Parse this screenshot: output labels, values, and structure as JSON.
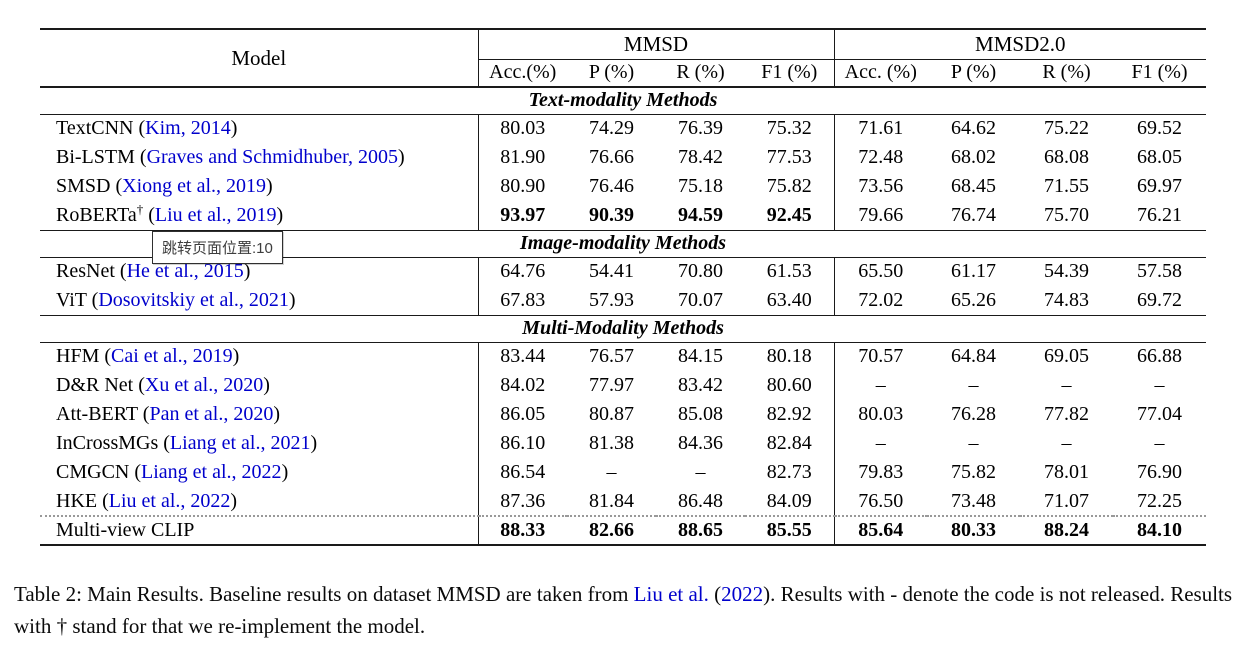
{
  "colors": {
    "link": "#0000CC",
    "rule": "#1a1a1a",
    "text": "#000000"
  },
  "table": {
    "cite_format": {
      "open": " (",
      "close": ")"
    },
    "header": {
      "model_label": "Model",
      "groups": [
        {
          "label": "MMSD"
        },
        {
          "label": "MMSD2.0"
        }
      ],
      "subheaders_mmsd": [
        "Acc.(%)",
        "P (%)",
        "R (%)",
        "F1 (%)"
      ],
      "subheaders_mmsd2": [
        "Acc. (%)",
        "P (%)",
        "R (%)",
        "F1 (%)"
      ]
    },
    "sections": [
      {
        "title": "Text-modality Methods",
        "rows": [
          {
            "name": "TextCNN",
            "sup": "",
            "cite": "Kim, 2014",
            "bold_mmsd": false,
            "bold_mmsd2": false,
            "dotted_top": false,
            "mmsd": [
              "80.03",
              "74.29",
              "76.39",
              "75.32"
            ],
            "mmsd2": [
              "71.61",
              "64.62",
              "75.22",
              "69.52"
            ]
          },
          {
            "name": "Bi-LSTM",
            "sup": "",
            "cite": "Graves and Schmidhuber, 2005",
            "bold_mmsd": false,
            "bold_mmsd2": false,
            "dotted_top": false,
            "mmsd": [
              "81.90",
              "76.66",
              "78.42",
              "77.53"
            ],
            "mmsd2": [
              "72.48",
              "68.02",
              "68.08",
              "68.05"
            ]
          },
          {
            "name": "SMSD",
            "sup": "",
            "cite": "Xiong et al., 2019",
            "bold_mmsd": false,
            "bold_mmsd2": false,
            "dotted_top": false,
            "mmsd": [
              "80.90",
              "76.46",
              "75.18",
              "75.82"
            ],
            "mmsd2": [
              "73.56",
              "68.45",
              "71.55",
              "69.97"
            ]
          },
          {
            "name": "RoBERTa",
            "sup": "†",
            "cite": "Liu et al., 2019",
            "bold_mmsd": true,
            "bold_mmsd2": false,
            "dotted_top": false,
            "mmsd": [
              "93.97",
              "90.39",
              "94.59",
              "92.45"
            ],
            "mmsd2": [
              "79.66",
              "76.74",
              "75.70",
              "76.21"
            ]
          }
        ]
      },
      {
        "title": "Image-modality Methods",
        "rows": [
          {
            "name": "ResNet",
            "sup": "",
            "cite": "He et al., 2015",
            "bold_mmsd": false,
            "bold_mmsd2": false,
            "dotted_top": false,
            "mmsd": [
              "64.76",
              "54.41",
              "70.80",
              "61.53"
            ],
            "mmsd2": [
              "65.50",
              "61.17",
              "54.39",
              "57.58"
            ]
          },
          {
            "name": "ViT",
            "sup": "",
            "cite": "Dosovitskiy et al., 2021",
            "bold_mmsd": false,
            "bold_mmsd2": false,
            "dotted_top": false,
            "mmsd": [
              "67.83",
              "57.93",
              "70.07",
              "63.40"
            ],
            "mmsd2": [
              "72.02",
              "65.26",
              "74.83",
              "69.72"
            ]
          }
        ]
      },
      {
        "title": "Multi-Modality Methods",
        "rows": [
          {
            "name": "HFM",
            "sup": "",
            "cite": "Cai et al., 2019",
            "bold_mmsd": false,
            "bold_mmsd2": false,
            "dotted_top": false,
            "mmsd": [
              "83.44",
              "76.57",
              "84.15",
              "80.18"
            ],
            "mmsd2": [
              "70.57",
              "64.84",
              "69.05",
              "66.88"
            ]
          },
          {
            "name": "D&R Net",
            "sup": "",
            "cite": "Xu et al., 2020",
            "bold_mmsd": false,
            "bold_mmsd2": false,
            "dotted_top": false,
            "mmsd": [
              "84.02",
              "77.97",
              "83.42",
              "80.60"
            ],
            "mmsd2": [
              "–",
              "–",
              "–",
              "–"
            ]
          },
          {
            "name": "Att-BERT",
            "sup": "",
            "cite": "Pan et al., 2020",
            "bold_mmsd": false,
            "bold_mmsd2": false,
            "dotted_top": false,
            "mmsd": [
              "86.05",
              "80.87",
              "85.08",
              "82.92"
            ],
            "mmsd2": [
              "80.03",
              "76.28",
              "77.82",
              "77.04"
            ]
          },
          {
            "name": "InCrossMGs",
            "sup": "",
            "cite": "Liang et al., 2021",
            "bold_mmsd": false,
            "bold_mmsd2": false,
            "dotted_top": false,
            "mmsd": [
              "86.10",
              "81.38",
              "84.36",
              "82.84"
            ],
            "mmsd2": [
              "–",
              "–",
              "–",
              "–"
            ]
          },
          {
            "name": "CMGCN",
            "sup": "",
            "cite": "Liang et al., 2022",
            "bold_mmsd": false,
            "bold_mmsd2": false,
            "dotted_top": false,
            "mmsd": [
              "86.54",
              "–",
              "–",
              "82.73"
            ],
            "mmsd2": [
              "79.83",
              "75.82",
              "78.01",
              "76.90"
            ]
          },
          {
            "name": "HKE",
            "sup": "",
            "cite": "Liu et al., 2022",
            "bold_mmsd": false,
            "bold_mmsd2": false,
            "dotted_top": false,
            "mmsd": [
              "87.36",
              "81.84",
              "86.48",
              "84.09"
            ],
            "mmsd2": [
              "76.50",
              "73.48",
              "71.07",
              "72.25"
            ]
          },
          {
            "name": "Multi-view CLIP",
            "sup": "",
            "cite": "",
            "bold_mmsd": true,
            "bold_mmsd2": true,
            "dotted_top": true,
            "mmsd": [
              "88.33",
              "82.66",
              "88.65",
              "85.55"
            ],
            "mmsd2": [
              "85.64",
              "80.33",
              "88.24",
              "84.10"
            ]
          }
        ]
      }
    ]
  },
  "tooltip": {
    "text": "跳转页面位置:10"
  },
  "caption": {
    "parts": [
      {
        "text": "Table 2: Main Results. Baseline results on dataset MMSD are taken from ",
        "style": "plain"
      },
      {
        "text": "Liu et al.",
        "style": "link"
      },
      {
        "text": " (",
        "style": "plain"
      },
      {
        "text": "2022",
        "style": "link"
      },
      {
        "text": "). Results with - denote the code is not released. Results with † stand for that we re-implement the model.",
        "style": "plain"
      }
    ]
  }
}
